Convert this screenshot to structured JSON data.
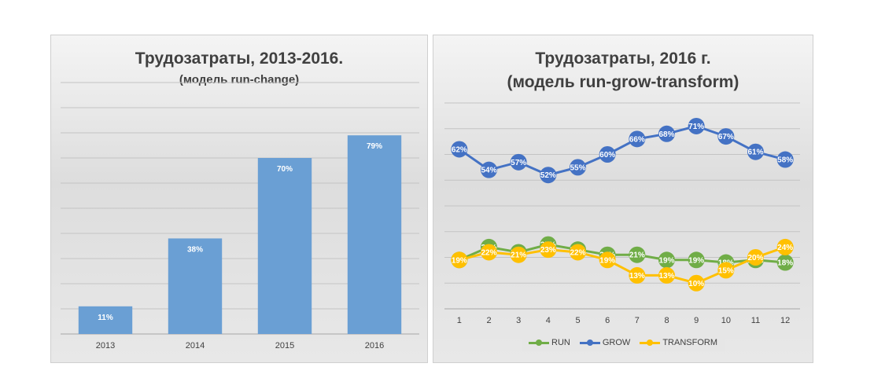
{
  "chart_data": [
    {
      "type": "bar",
      "title": "Трудозатраты, 2013-2016.",
      "subtitle": "(модель run-change)",
      "categories": [
        "2013",
        "2014",
        "2015",
        "2016"
      ],
      "values": [
        11,
        38,
        70,
        79
      ],
      "data_labels": [
        "11%",
        "38%",
        "70%",
        "79%"
      ],
      "ylim": [
        0,
        100
      ],
      "grid": true,
      "color": "#6a9fd4"
    },
    {
      "type": "line",
      "title": "Трудозатраты, 2016 г.",
      "subtitle": "(модель run-grow-transform)",
      "x": [
        "1",
        "2",
        "3",
        "4",
        "5",
        "6",
        "7",
        "8",
        "9",
        "10",
        "11",
        "12"
      ],
      "ylim": [
        0,
        80
      ],
      "grid": true,
      "legend": "bottom",
      "series": [
        {
          "name": "RUN",
          "color": "#70ad47",
          "values": [
            19,
            24,
            22,
            25,
            23,
            21,
            21,
            19,
            19,
            18,
            19,
            18
          ],
          "labels": [
            "19%",
            "24%",
            "22%",
            "25%",
            "23%",
            "21%",
            "21%",
            "19%",
            "19%",
            "18%",
            "19%",
            "18%"
          ]
        },
        {
          "name": "GROW",
          "color": "#4472c4",
          "values": [
            62,
            54,
            57,
            52,
            55,
            60,
            66,
            68,
            71,
            67,
            61,
            58
          ],
          "labels": [
            "62%",
            "54%",
            "57%",
            "52%",
            "55%",
            "60%",
            "66%",
            "68%",
            "71%",
            "67%",
            "61%",
            "58%"
          ]
        },
        {
          "name": "TRANSFORM",
          "color": "#ffc000",
          "values": [
            19,
            22,
            21,
            23,
            22,
            19,
            13,
            13,
            10,
            15,
            20,
            24
          ],
          "labels": [
            "19%",
            "22%",
            "21%",
            "23%",
            "22%",
            "19%",
            "13%",
            "13%",
            "10%",
            "15%",
            "20%",
            "24%"
          ]
        }
      ]
    }
  ]
}
